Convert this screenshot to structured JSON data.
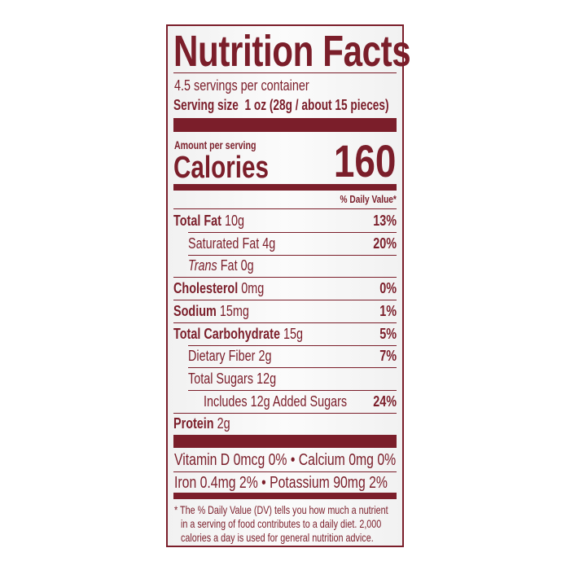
{
  "title": "Nutrition Facts",
  "servings_per_container": "4.5 servings per container",
  "serving_size_label": "Serving size",
  "serving_size_value": "1 oz (28g / about 15 pieces)",
  "amount_per_serving": "Amount per serving",
  "calories_label": "Calories",
  "calories_value": "160",
  "daily_value_header": "% Daily Value*",
  "nutrients": [
    {
      "label": "Total Fat",
      "amount": "10g",
      "dv": "13%",
      "bold": true,
      "indent": 0
    },
    {
      "label": "Saturated Fat",
      "amount": "4g",
      "dv": "20%",
      "bold": false,
      "indent": 1
    },
    {
      "label": "Trans",
      "label_suffix": "Fat",
      "amount": "0g",
      "dv": "",
      "bold": false,
      "indent": 1,
      "italic": true
    },
    {
      "label": "Cholesterol",
      "amount": "0mg",
      "dv": "0%",
      "bold": true,
      "indent": 0
    },
    {
      "label": "Sodium",
      "amount": "15mg",
      "dv": "1%",
      "bold": true,
      "indent": 0
    },
    {
      "label": "Total Carbohydrate",
      "amount": "15g",
      "dv": "5%",
      "bold": true,
      "indent": 0
    },
    {
      "label": "Dietary Fiber",
      "amount": "2g",
      "dv": "7%",
      "bold": false,
      "indent": 1
    },
    {
      "label": "Total Sugars",
      "amount": "12g",
      "dv": "",
      "bold": false,
      "indent": 1
    },
    {
      "label": "Includes 12g Added Sugars",
      "amount": "",
      "dv": "24%",
      "bold": false,
      "indent": 2
    },
    {
      "label": "Protein",
      "amount": "2g",
      "dv": "",
      "bold": true,
      "indent": 0
    }
  ],
  "vitamins": [
    "Vitamin D 0mcg 0%  •  Calcium 0mg 0%",
    "Iron 0.4mg 2%  •  Potassium 90mg 2%"
  ],
  "footnote": [
    "* The % Daily Value (DV) tells you how much a nutrient",
    "in a serving of food contributes to a daily diet. 2,000",
    "calories a day is used for general nutrition advice."
  ],
  "colors": {
    "ink": "#7b1e2a",
    "background": "#f4f4f4"
  }
}
